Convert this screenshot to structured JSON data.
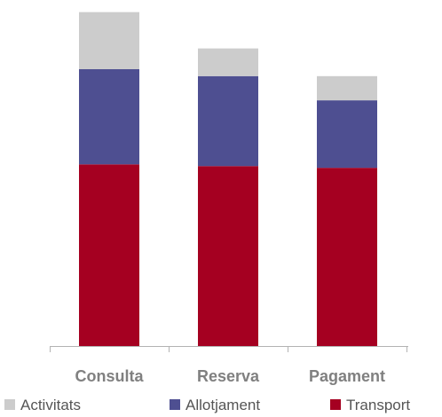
{
  "chart_data": {
    "type": "bar",
    "stacked": true,
    "categories": [
      "Consulta",
      "Reserva",
      "Pagament"
    ],
    "series": [
      {
        "name": "Transport",
        "color": "#a50021",
        "values": [
          52.5,
          52,
          51.5
        ]
      },
      {
        "name": "Allotjament",
        "color": "#4e4f91",
        "values": [
          27.5,
          26,
          19.5
        ]
      },
      {
        "name": "Activitats",
        "color": "#cccccc",
        "values": [
          16.5,
          8,
          7
        ]
      }
    ],
    "legend_order": [
      "Activitats",
      "Allotjament",
      "Transport"
    ],
    "legend_position": "bottom",
    "ylim": [
      0,
      100
    ],
    "grid": false,
    "title": "",
    "xlabel": "",
    "ylabel": ""
  }
}
